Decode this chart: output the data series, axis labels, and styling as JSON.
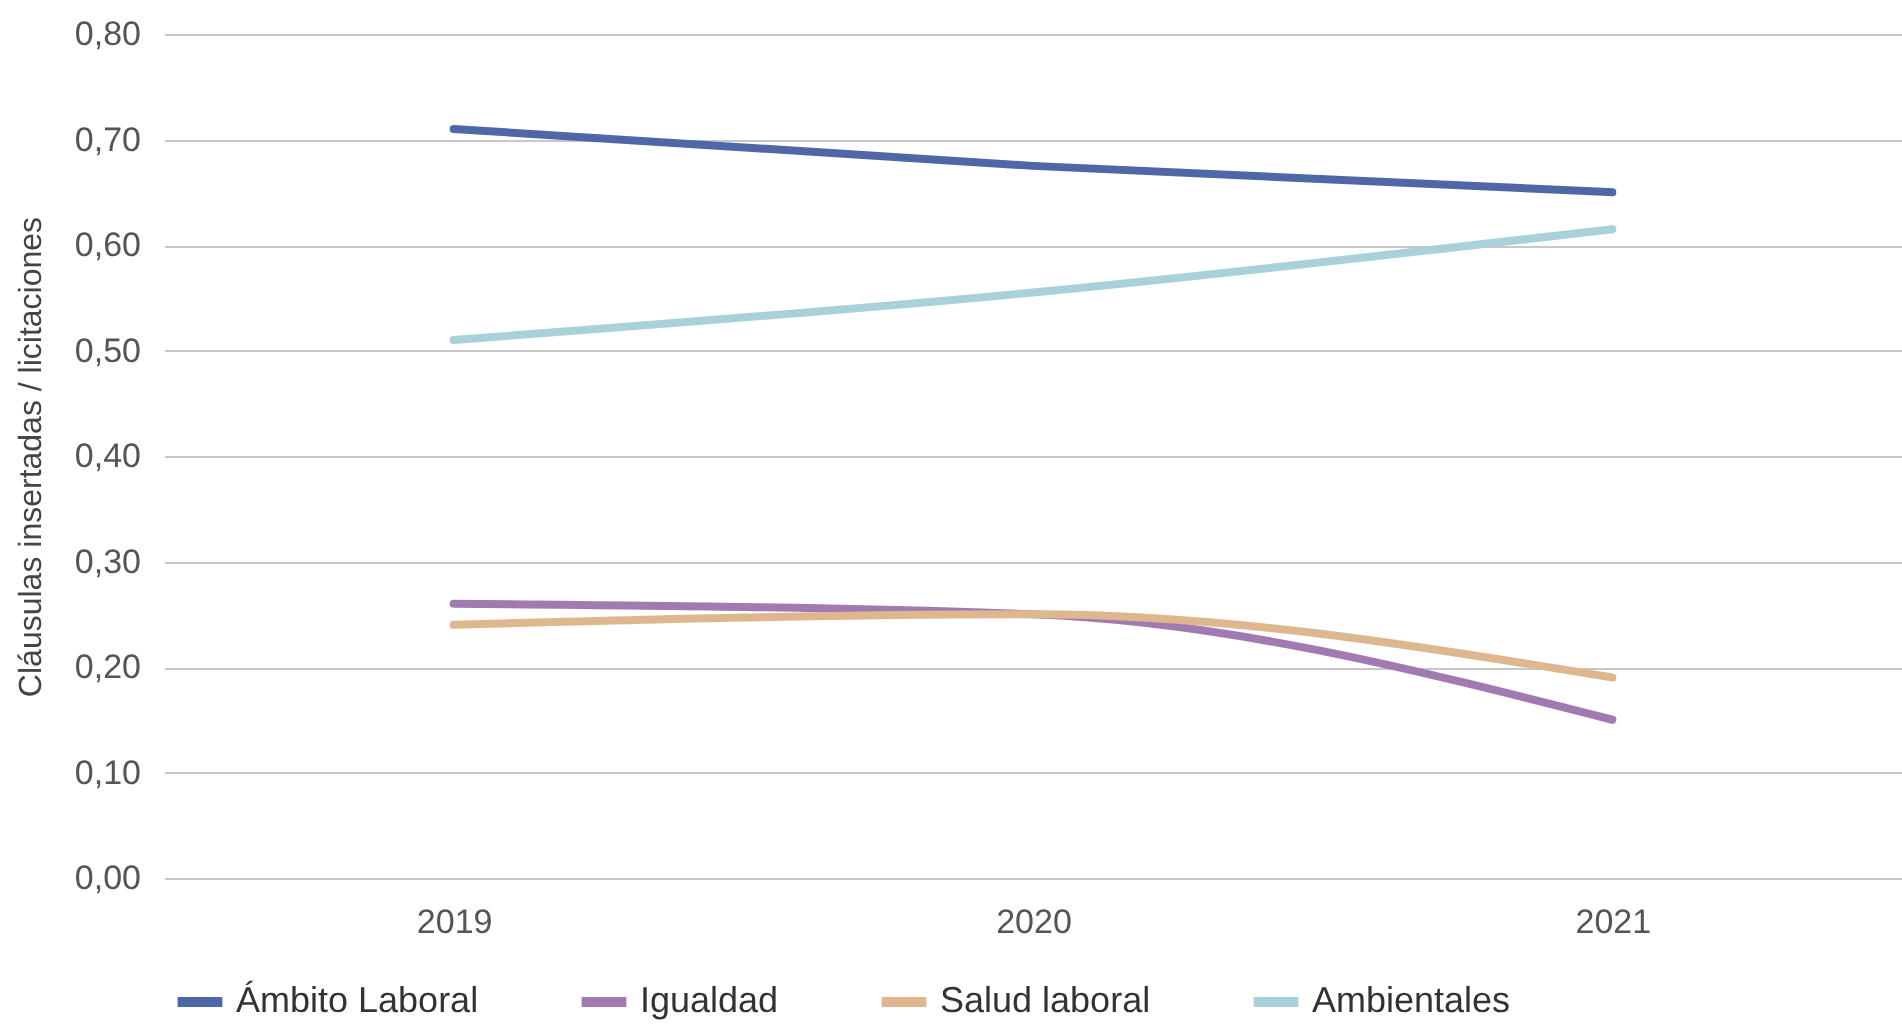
{
  "chart_data": {
    "type": "line",
    "ylabel": "Cláusulas insertadas / licitaciones",
    "categories": [
      "2019",
      "2020",
      "2021"
    ],
    "series": [
      {
        "name": "Ámbito Laboral",
        "color": "#4f67a6",
        "values": [
          0.71,
          0.675,
          0.65
        ]
      },
      {
        "name": "Igualdad",
        "color": "#a07ab0",
        "values": [
          0.26,
          0.25,
          0.15
        ]
      },
      {
        "name": "Salud laboral",
        "color": "#dfb78e",
        "values": [
          0.24,
          0.25,
          0.19
        ]
      },
      {
        "name": "Ambientales",
        "color": "#a9d1d9",
        "values": [
          0.51,
          0.555,
          0.615
        ]
      }
    ],
    "ylim": [
      0,
      0.8
    ],
    "yticks": [
      {
        "value": 0,
        "label": "0,00"
      },
      {
        "value": 0.1,
        "label": "0,10"
      },
      {
        "value": 0.2,
        "label": "0,20"
      },
      {
        "value": 0.3,
        "label": "0,30"
      },
      {
        "value": 0.4,
        "label": "0,40"
      },
      {
        "value": 0.5,
        "label": "0,50"
      },
      {
        "value": 0.6,
        "label": "0,60"
      },
      {
        "value": 0.7,
        "label": "0,70"
      },
      {
        "value": 0.8,
        "label": "0,80"
      }
    ],
    "grid": "y",
    "legend": "bottom",
    "marker": "none",
    "line_style": "solid"
  }
}
